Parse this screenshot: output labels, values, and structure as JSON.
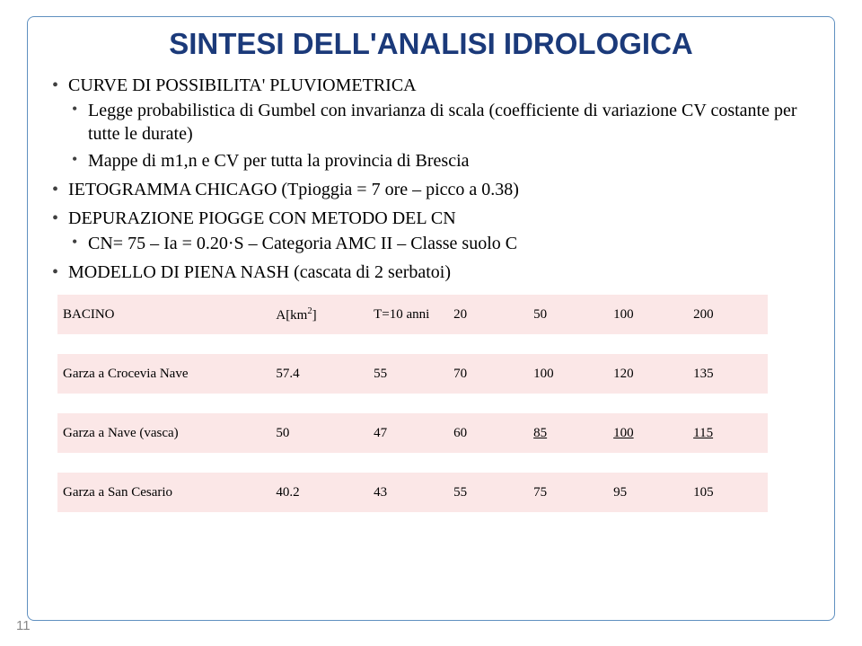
{
  "title": "SINTESI DELL'ANALISI IDROLOGICA",
  "bullets": {
    "b1": "CURVE DI POSSIBILITA' PLUVIOMETRICA",
    "b1_sub1": "Legge probabilistica di Gumbel con invarianza di scala (coefficiente di variazione CV costante per tutte le durate)",
    "b1_sub2": "Mappe di m1,n e CV per tutta la provincia di Brescia",
    "b2": "  IETOGRAMMA CHICAGO (Tpioggia = 7 ore – picco a 0.38)",
    "b3": "DEPURAZIONE PIOGGE CON METODO DEL CN",
    "b3_sub1": "CN= 75 – Ia = 0.20·S – Categoria AMC II – Classe suolo C",
    "b4": "MODELLO DI PIENA NASH (cascata di 2 serbatoi)"
  },
  "table": {
    "headers": {
      "c0": "BACINO",
      "c1_pre": "A[km",
      "c1_post": "]",
      "c2": "T=10 anni",
      "c3": "20",
      "c4": "50",
      "c5": "100",
      "c6": "200"
    },
    "rows": [
      {
        "c0": "Garza a Crocevia Nave",
        "c1": "57.4",
        "c2": "55",
        "c3": "70",
        "c4": "100",
        "c5": "120",
        "c6": "135",
        "under": []
      },
      {
        "c0": "Garza a Nave (vasca)",
        "c1": "50",
        "c2": "47",
        "c3": "60",
        "c4": "85",
        "c5": "100",
        "c6": "115",
        "under": [
          "c4",
          "c5",
          "c6"
        ]
      },
      {
        "c0": "Garza a San Cesario",
        "c1": "40.2",
        "c2": "43",
        "c3": "55",
        "c4": "75",
        "c5": "95",
        "c6": "105",
        "under": []
      }
    ]
  },
  "pagenum": "11",
  "colors": {
    "title": "#1b3a7a",
    "frame": "#6090c0",
    "row_alt": "#fbe7e7",
    "pagenum": "#888888"
  },
  "font_sizes": {
    "title": 33,
    "body": 20,
    "table": 15,
    "pagenum": 15
  }
}
